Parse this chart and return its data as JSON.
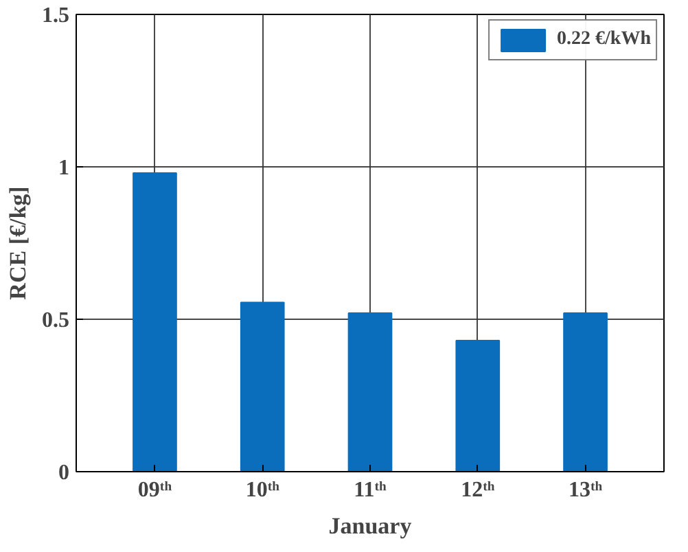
{
  "chart_data": {
    "type": "bar",
    "xlabel": "January",
    "ylabel": "RCE [€/kg]",
    "categories": [
      "09ᵗʰ",
      "10ᵗʰ",
      "11ᵗʰ",
      "12ᵗʰ",
      "13ᵗʰ"
    ],
    "series": [
      {
        "name": "0.22 €/kWh",
        "color": "#0a6ebd",
        "values": [
          0.98,
          0.555,
          0.52,
          0.43,
          0.52
        ]
      }
    ],
    "ylim": [
      0,
      1.5
    ],
    "yticks": [
      0,
      0.5,
      1,
      1.5
    ],
    "grid": true,
    "legend": "top right"
  }
}
